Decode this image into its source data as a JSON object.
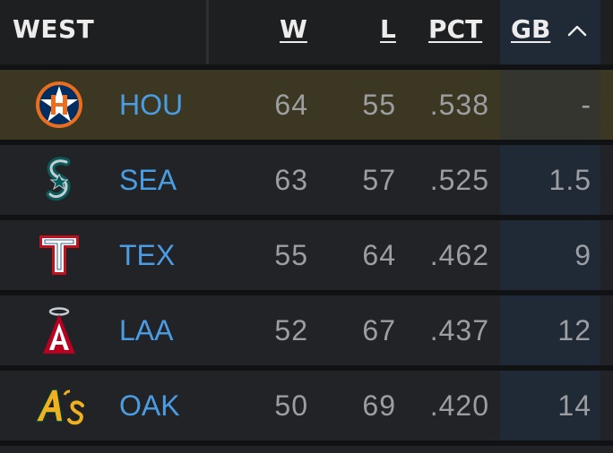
{
  "division": "WEST",
  "columns": {
    "w": "W",
    "l": "L",
    "pct": "PCT",
    "gb": "GB"
  },
  "sort": {
    "column": "GB",
    "direction": "ascending",
    "icon": "chevron-up-icon"
  },
  "teams": [
    {
      "abbr": "HOU",
      "logo": "astros-logo",
      "w": "64",
      "l": "55",
      "pct": ".538",
      "gb": "-",
      "highlighted": true
    },
    {
      "abbr": "SEA",
      "logo": "mariners-logo",
      "w": "63",
      "l": "57",
      "pct": ".525",
      "gb": "1.5",
      "highlighted": false
    },
    {
      "abbr": "TEX",
      "logo": "rangers-logo",
      "w": "55",
      "l": "64",
      "pct": ".462",
      "gb": "9",
      "highlighted": false
    },
    {
      "abbr": "LAA",
      "logo": "angels-logo",
      "w": "52",
      "l": "67",
      "pct": ".437",
      "gb": "12",
      "highlighted": false
    },
    {
      "abbr": "OAK",
      "logo": "athletics-logo",
      "w": "50",
      "l": "69",
      "pct": ".420",
      "gb": "14",
      "highlighted": false
    }
  ],
  "colors": {
    "team_link": "#4a9de2",
    "stat_text": "#9d9ea1",
    "header_text": "#ececec",
    "highlight_row": "#3c3722",
    "sorted_column": "#1f2a36"
  }
}
